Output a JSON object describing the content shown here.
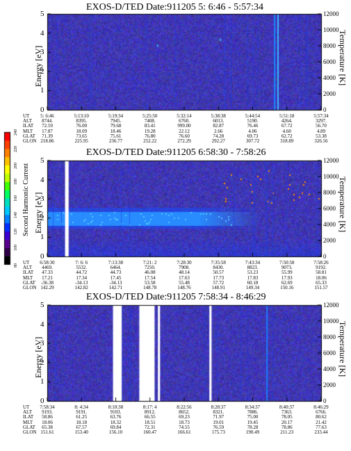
{
  "chart_data": [
    {
      "type": "heatmap",
      "title": "EXOS-D/TED   Date:911205  5: 6:46 - 5:57:34",
      "ylabel": "Energy [eV]",
      "ylabel_right": "Temperature [K]",
      "ylim": [
        0,
        5
      ],
      "yticks": [
        "0",
        "1",
        "2",
        "3",
        "4",
        "5"
      ],
      "ylim_right": [
        0,
        12000
      ],
      "yticks_right": [
        "0",
        "2000",
        "4000",
        "6000",
        "8000",
        "10000",
        "12000"
      ],
      "row_labels": [
        "UT",
        "ALT",
        "ILAT",
        "MLT",
        "GLAT",
        "GLON"
      ],
      "columns": [
        [
          "5: 6:46",
          "8744.",
          "72.59",
          "17.87",
          "71.39",
          "218.86"
        ],
        [
          "5:13:10",
          "8395.",
          "76.00",
          "18.09",
          "73.65",
          "225.95"
        ],
        [
          "5:19:34",
          "7945.",
          "79.68",
          "18.46",
          "75.61",
          "236.77"
        ],
        [
          "5:25:50",
          "7408.",
          "83.41",
          "19.28",
          "76.80",
          "252.22"
        ],
        [
          "5:32:14",
          "6760.",
          "999.00",
          "22.12",
          "76.60",
          "272.29"
        ],
        [
          "5:38:38",
          "6013.",
          "82.87",
          "2.66",
          "74.28",
          "292.27"
        ],
        [
          "5:44:54",
          "5190.",
          "76.46",
          "4.06",
          "69.73",
          "307.72"
        ],
        [
          "5:51:18",
          "4264.",
          "67.72",
          "4.60",
          "62.72",
          "318.89"
        ],
        [
          "5:57:34",
          "3297.",
          "56.70",
          "4.89",
          "53.38",
          "326.56"
        ]
      ],
      "white_gaps": [],
      "features": [
        {
          "kind": "vertical_line",
          "x_frac": 0.84,
          "color": "#3db7ff"
        },
        {
          "kind": "vertical_line",
          "x_frac": 0.828,
          "color": "#1a8cff"
        },
        {
          "kind": "spot",
          "x_frac": 0.4,
          "energy": 3.4
        },
        {
          "kind": "spot",
          "x_frac": 0.63,
          "energy": 3.7
        }
      ],
      "band": null
    },
    {
      "type": "heatmap",
      "title": "EXOS-D/TED   Date:911205  6:58:30 - 7:58:26",
      "ylabel": "Energy [eV]",
      "ylabel_right": "Temperature [K]",
      "ylim": [
        0,
        5
      ],
      "yticks": [
        "0",
        "1",
        "2",
        "3",
        "4",
        "5"
      ],
      "ylim_right": [
        0,
        12000
      ],
      "yticks_right": [
        "0",
        "2000",
        "4000",
        "6000",
        "8000",
        "10000",
        "12000"
      ],
      "row_labels": [
        "UT",
        "ALT",
        "ILAT",
        "MLT",
        "GLAT",
        "GLON"
      ],
      "columns": [
        [
          "6:58:30",
          "4469.",
          "47.33",
          "17.21",
          "-36.38",
          "142.29"
        ],
        [
          "7: 6: 6",
          "5532.",
          "44.72",
          "17.34",
          "-34.13",
          "142.82"
        ],
        [
          "7:13:38",
          "6464.",
          "44.73",
          "17.45",
          "-34.13",
          "142.71"
        ],
        [
          "7:21: 2",
          "7250.",
          "46.08",
          "17.54",
          "53.58",
          "148.78"
        ],
        [
          "7:28:30",
          "7908.",
          "48.14",
          "17.63",
          "55.48",
          "148.76"
        ],
        [
          "7:35:58",
          "8430.",
          "50.57",
          "17.73",
          "57.72",
          "148.91"
        ],
        [
          "7:43:34",
          "8823.",
          "53.23",
          "17.83",
          "60.18",
          "149.34"
        ],
        [
          "7:50:58",
          "9073.",
          "55.99",
          "17.93",
          "62.69",
          "150.16"
        ],
        [
          "7:58:26",
          "9192.",
          "58.81",
          "18.06",
          "65.33",
          "151.57"
        ]
      ],
      "white_gaps": [
        {
          "start": 0.065,
          "end": 0.078
        }
      ],
      "band": {
        "center_ev": 2.0,
        "core_half_ev": 0.35,
        "outer_half_ev": 0.55,
        "fade_from": 0.55,
        "fade_to": 0.78
      },
      "features": [],
      "colorbar": {
        "label": "Second Harmonic Current",
        "ticks": [
          "80",
          "100",
          "120",
          "140",
          "160",
          "180",
          "200",
          "220",
          "240"
        ],
        "colors": [
          "#000000",
          "#30004a",
          "#5a0090",
          "#3a00d0",
          "#0030ff",
          "#0080ff",
          "#00c8ff",
          "#00e0c0",
          "#00ff60",
          "#40ff00",
          "#c0ff00",
          "#ffff00",
          "#ffc000",
          "#ff8000",
          "#ff4000",
          "#ff0000"
        ]
      }
    },
    {
      "type": "heatmap",
      "title": "EXOS-D/TED   Date:911205  7:58:34 - 8:46:29",
      "ylabel": "Energy [eV]",
      "ylabel_right": "Temperature [K]",
      "ylim": [
        0,
        5
      ],
      "yticks": [
        "0",
        "1",
        "2",
        "3",
        "4",
        "5"
      ],
      "ylim_right": [
        0,
        12000
      ],
      "yticks_right": [
        "0",
        "2000",
        "4000",
        "6000",
        "8000",
        "10000",
        "12000"
      ],
      "row_labels": [
        "UT",
        "ALT",
        "ILAT",
        "MLT",
        "GLAT",
        "GLON"
      ],
      "columns": [
        [
          "7:58:34",
          "9193.",
          "58.86",
          "18.06",
          "65.38",
          "151.61"
        ],
        [
          "8: 4:34",
          "9191.",
          "61.25",
          "18.18",
          "67.57",
          "153.40"
        ],
        [
          "8:10:38",
          "9103.",
          "63.76",
          "18.32",
          "69.84",
          "156.10"
        ],
        [
          "8:17: 4",
          "8912.",
          "66.55",
          "18.51",
          "72.31",
          "160.47"
        ],
        [
          "8:22:56",
          "8652.",
          "69.23",
          "18.73",
          "74.55",
          "166.61"
        ],
        [
          "8:28:37",
          "8321.",
          "71.97",
          "19.01",
          "76.59",
          "175.73"
        ],
        [
          "8:34:37",
          "7886.",
          "75.00",
          "19.45",
          "78.28",
          "190.49"
        ],
        [
          "8:40:37",
          "7363.",
          "78.05",
          "20.17",
          "78.86",
          "211.23"
        ],
        [
          "8:46:29",
          "6766.",
          "80.62",
          "21.42",
          "77.63",
          "233.44"
        ]
      ],
      "white_gaps": [
        {
          "start": 0.24,
          "end": 0.272
        },
        {
          "start": 0.336,
          "end": 0.392
        },
        {
          "start": 0.404,
          "end": 0.412
        },
        {
          "start": 0.592,
          "end": 0.6
        }
      ],
      "band": null,
      "features": [
        {
          "kind": "vertical_line",
          "x_frac": 0.8,
          "color": "#1a7cff"
        }
      ]
    }
  ]
}
